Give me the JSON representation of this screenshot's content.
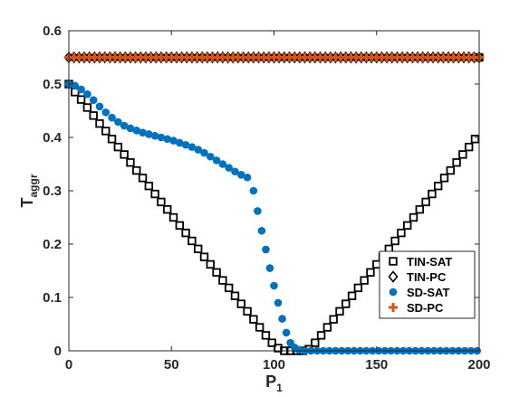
{
  "chart_data": {
    "type": "scatter",
    "xlabel": "P",
    "xlabel_sub": "1",
    "ylabel": "T",
    "ylabel_sub": "aggr",
    "xlim": [
      0,
      200
    ],
    "ylim": [
      0,
      0.6
    ],
    "xticks": [
      0,
      50,
      100,
      150,
      200
    ],
    "yticks": [
      0,
      0.1,
      0.2,
      0.3,
      0.4,
      0.5,
      0.6
    ],
    "xtick_labels": [
      "0",
      "50",
      "100",
      "150",
      "200"
    ],
    "ytick_labels": [
      "0",
      "0.1",
      "0.2",
      "0.3",
      "0.4",
      "0.5",
      "0.6"
    ],
    "grid": false,
    "legend_position": "bottom-right",
    "series": [
      {
        "name": "TIN-SAT",
        "marker": "square",
        "color": "#000000",
        "x": [
          0,
          3,
          6,
          9,
          12,
          15,
          18,
          21,
          24,
          27,
          30,
          33,
          36,
          39,
          42,
          45,
          48,
          51,
          54,
          57,
          60,
          63,
          66,
          69,
          72,
          75,
          78,
          81,
          84,
          87,
          90,
          93,
          96,
          99,
          102,
          105,
          108,
          111,
          114,
          117,
          120,
          123,
          126,
          129,
          132,
          135,
          138,
          141,
          144,
          147,
          150,
          153,
          156,
          159,
          162,
          165,
          168,
          171,
          174,
          177,
          180,
          183,
          186,
          189,
          192,
          195,
          198,
          200
        ],
        "y": [
          0.5,
          0.485,
          0.471,
          0.456,
          0.441,
          0.426,
          0.412,
          0.397,
          0.382,
          0.368,
          0.353,
          0.338,
          0.324,
          0.309,
          0.294,
          0.279,
          0.265,
          0.25,
          0.235,
          0.221,
          0.206,
          0.191,
          0.176,
          0.162,
          0.147,
          0.132,
          0.118,
          0.103,
          0.088,
          0.074,
          0.059,
          0.044,
          0.029,
          0.015,
          0.005,
          0.0,
          0.0,
          0.0,
          0.0,
          0.003,
          0.015,
          0.029,
          0.044,
          0.059,
          0.074,
          0.088,
          0.103,
          0.118,
          0.132,
          0.147,
          0.162,
          0.176,
          0.191,
          0.206,
          0.221,
          0.235,
          0.25,
          0.265,
          0.279,
          0.294,
          0.309,
          0.324,
          0.338,
          0.353,
          0.368,
          0.382,
          0.397,
          0.55
        ]
      },
      {
        "name": "TIN-PC",
        "marker": "diamond",
        "color": "#000000",
        "x": [
          0,
          2.5,
          5,
          7.5,
          10,
          12.5,
          15,
          17.5,
          20,
          22.5,
          25,
          27.5,
          30,
          32.5,
          35,
          37.5,
          40,
          42.5,
          45,
          47.5,
          50,
          52.5,
          55,
          57.5,
          60,
          62.5,
          65,
          67.5,
          70,
          72.5,
          75,
          77.5,
          80,
          82.5,
          85,
          87.5,
          90,
          92.5,
          95,
          97.5,
          100,
          102.5,
          105,
          107.5,
          110,
          112.5,
          115,
          117.5,
          120,
          122.5,
          125,
          127.5,
          130,
          132.5,
          135,
          137.5,
          140,
          142.5,
          145,
          147.5,
          150,
          152.5,
          155,
          157.5,
          160,
          162.5,
          165,
          167.5,
          170,
          172.5,
          175,
          177.5,
          180,
          182.5,
          185,
          187.5,
          190,
          192.5,
          195,
          197.5,
          200
        ],
        "y": [
          0.55,
          0.55,
          0.55,
          0.55,
          0.55,
          0.55,
          0.55,
          0.55,
          0.55,
          0.55,
          0.55,
          0.55,
          0.55,
          0.55,
          0.55,
          0.55,
          0.55,
          0.55,
          0.55,
          0.55,
          0.55,
          0.55,
          0.55,
          0.55,
          0.55,
          0.55,
          0.55,
          0.55,
          0.55,
          0.55,
          0.55,
          0.55,
          0.55,
          0.55,
          0.55,
          0.55,
          0.55,
          0.55,
          0.55,
          0.55,
          0.55,
          0.55,
          0.55,
          0.55,
          0.55,
          0.55,
          0.55,
          0.55,
          0.55,
          0.55,
          0.55,
          0.55,
          0.55,
          0.55,
          0.55,
          0.55,
          0.55,
          0.55,
          0.55,
          0.55,
          0.55,
          0.55,
          0.55,
          0.55,
          0.55,
          0.55,
          0.55,
          0.55,
          0.55,
          0.55,
          0.55,
          0.55,
          0.55,
          0.55,
          0.55,
          0.55,
          0.55,
          0.55,
          0.55,
          0.55,
          0.55
        ]
      },
      {
        "name": "SD-SAT",
        "marker": "circle",
        "color": "#0072BD",
        "x": [
          0,
          3,
          6,
          9,
          12,
          15,
          18,
          21,
          24,
          27,
          30,
          33,
          36,
          39,
          42,
          45,
          48,
          51,
          54,
          57,
          60,
          63,
          66,
          69,
          72,
          75,
          78,
          81,
          84,
          87,
          90,
          92,
          94,
          96,
          98,
          100,
          102,
          104,
          106,
          108,
          110,
          112,
          115,
          118,
          121,
          124,
          127,
          130,
          133,
          136,
          139,
          142,
          145,
          148,
          151,
          154,
          157,
          160,
          163,
          166,
          169,
          172,
          175,
          178,
          181,
          184,
          187,
          190,
          193,
          196,
          199
        ],
        "y": [
          0.5,
          0.497,
          0.49,
          0.481,
          0.47,
          0.458,
          0.447,
          0.437,
          0.429,
          0.422,
          0.417,
          0.413,
          0.409,
          0.406,
          0.403,
          0.4,
          0.397,
          0.394,
          0.39,
          0.386,
          0.382,
          0.377,
          0.371,
          0.364,
          0.357,
          0.35,
          0.343,
          0.336,
          0.33,
          0.325,
          0.3,
          0.262,
          0.225,
          0.19,
          0.155,
          0.122,
          0.09,
          0.06,
          0.034,
          0.015,
          0.006,
          0.002,
          0.0,
          0.0,
          0.0,
          0.0,
          0.0,
          0.0,
          0.0,
          0.0,
          0.0,
          0.0,
          0.0,
          0.0,
          0.0,
          0.0,
          0.0,
          0.0,
          0.0,
          0.0,
          0.0,
          0.0,
          0.0,
          0.0,
          0.0,
          0.0,
          0.0,
          0.0,
          0.0,
          0.0,
          0.0
        ]
      },
      {
        "name": "SD-PC",
        "marker": "plus",
        "color": "#D95319",
        "x": [
          0,
          2.5,
          5,
          7.5,
          10,
          12.5,
          15,
          17.5,
          20,
          22.5,
          25,
          27.5,
          30,
          32.5,
          35,
          37.5,
          40,
          42.5,
          45,
          47.5,
          50,
          52.5,
          55,
          57.5,
          60,
          62.5,
          65,
          67.5,
          70,
          72.5,
          75,
          77.5,
          80,
          82.5,
          85,
          87.5,
          90,
          92.5,
          95,
          97.5,
          100,
          102.5,
          105,
          107.5,
          110,
          112.5,
          115,
          117.5,
          120,
          122.5,
          125,
          127.5,
          130,
          132.5,
          135,
          137.5,
          140,
          142.5,
          145,
          147.5,
          150,
          152.5,
          155,
          157.5,
          160,
          162.5,
          165,
          167.5,
          170,
          172.5,
          175,
          177.5,
          180,
          182.5,
          185,
          187.5,
          190,
          192.5,
          195,
          197.5,
          200
        ],
        "y": [
          0.55,
          0.55,
          0.55,
          0.55,
          0.55,
          0.55,
          0.55,
          0.55,
          0.55,
          0.55,
          0.55,
          0.55,
          0.55,
          0.55,
          0.55,
          0.55,
          0.55,
          0.55,
          0.55,
          0.55,
          0.55,
          0.55,
          0.55,
          0.55,
          0.55,
          0.55,
          0.55,
          0.55,
          0.55,
          0.55,
          0.55,
          0.55,
          0.55,
          0.55,
          0.55,
          0.55,
          0.55,
          0.55,
          0.55,
          0.55,
          0.55,
          0.55,
          0.55,
          0.55,
          0.55,
          0.55,
          0.55,
          0.55,
          0.55,
          0.55,
          0.55,
          0.55,
          0.55,
          0.55,
          0.55,
          0.55,
          0.55,
          0.55,
          0.55,
          0.55,
          0.55,
          0.55,
          0.55,
          0.55,
          0.55,
          0.55,
          0.55,
          0.55,
          0.55,
          0.55,
          0.55,
          0.55,
          0.55,
          0.55,
          0.55,
          0.55,
          0.55,
          0.55,
          0.55,
          0.55,
          0.55
        ]
      }
    ]
  }
}
